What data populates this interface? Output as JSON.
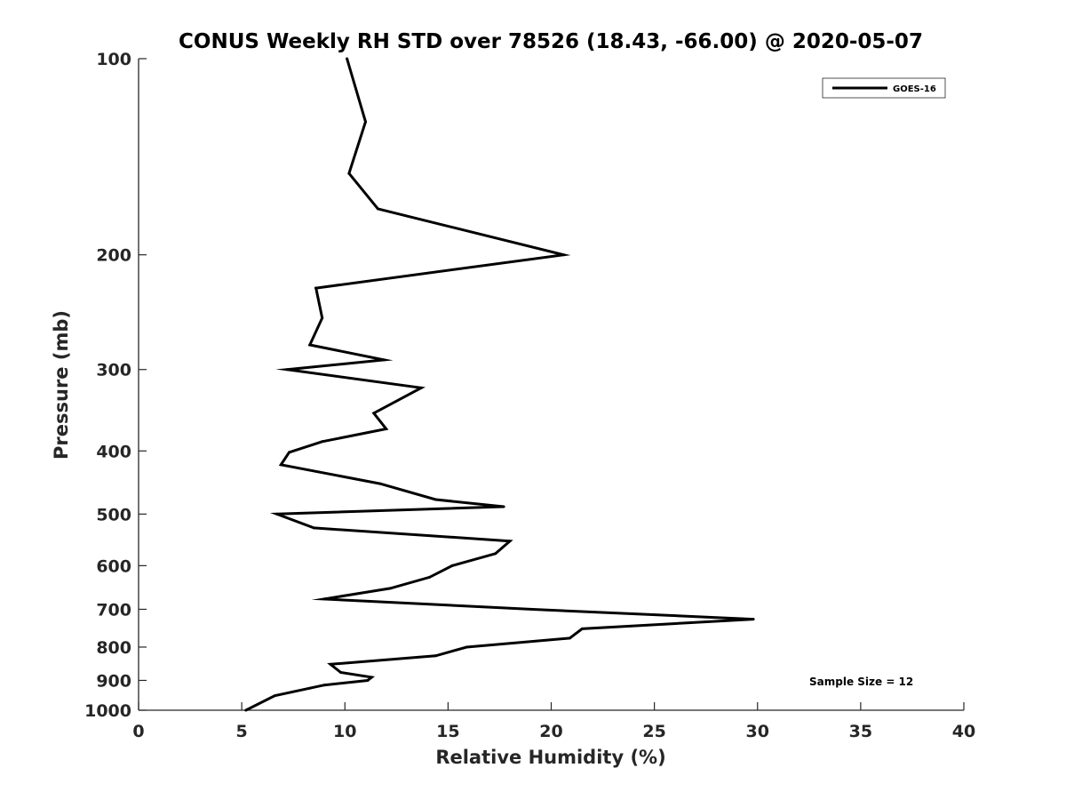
{
  "chart_data": {
    "type": "line",
    "title": "CONUS Weekly RH STD over 78526 (18.43, -66.00) @ 2020-05-07",
    "xlabel": "Relative Humidity (%)",
    "ylabel": "Pressure (mb)",
    "xlim": [
      0,
      40
    ],
    "ylim": [
      100,
      1000
    ],
    "y_scale": "log",
    "y_reversed": true,
    "xticks": [
      0,
      5,
      10,
      15,
      20,
      25,
      30,
      35,
      40
    ],
    "yticks": [
      100,
      200,
      300,
      400,
      500,
      600,
      700,
      800,
      900,
      1000
    ],
    "grid": false,
    "legend": {
      "position": "top-right",
      "entries": [
        "GOES-16"
      ]
    },
    "annotation": "Sample Size = 12",
    "series": [
      {
        "name": "GOES-16",
        "color": "#000000",
        "points": [
          [
            10.1,
            100
          ],
          [
            11.0,
            125
          ],
          [
            10.2,
            150
          ],
          [
            11.6,
            170
          ],
          [
            20.6,
            200
          ],
          [
            8.6,
            225
          ],
          [
            8.9,
            250
          ],
          [
            8.3,
            275
          ],
          [
            11.9,
            290
          ],
          [
            7.2,
            300
          ],
          [
            13.7,
            320
          ],
          [
            11.4,
            350
          ],
          [
            12.0,
            370
          ],
          [
            8.9,
            387
          ],
          [
            7.3,
            402
          ],
          [
            6.9,
            420
          ],
          [
            11.7,
            449
          ],
          [
            14.4,
            475
          ],
          [
            17.7,
            487
          ],
          [
            6.7,
            500
          ],
          [
            8.5,
            525
          ],
          [
            18.0,
            550
          ],
          [
            17.3,
            575
          ],
          [
            15.2,
            600
          ],
          [
            14.1,
            625
          ],
          [
            12.2,
            650
          ],
          [
            9.0,
            675
          ],
          [
            19.1,
            700
          ],
          [
            29.8,
            725
          ],
          [
            21.5,
            750
          ],
          [
            20.9,
            775
          ],
          [
            15.9,
            800
          ],
          [
            14.4,
            825
          ],
          [
            9.3,
            850
          ],
          [
            9.8,
            875
          ],
          [
            11.3,
            890
          ],
          [
            11.1,
            900
          ],
          [
            9.0,
            915
          ],
          [
            8.3,
            925
          ],
          [
            6.6,
            950
          ],
          [
            5.2,
            1000
          ]
        ]
      }
    ]
  }
}
